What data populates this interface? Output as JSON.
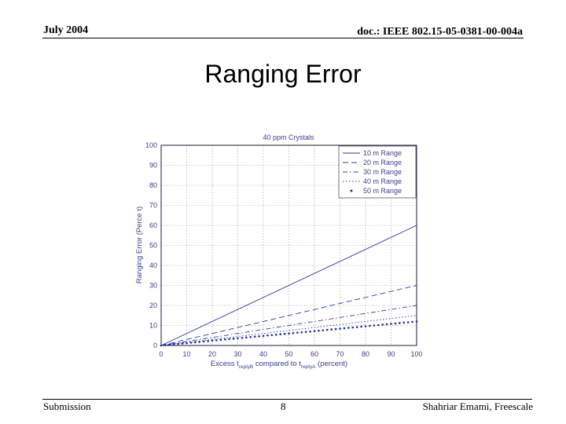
{
  "header": {
    "date": "July 2004",
    "doc_id": "doc.: IEEE 802.15-05-0381-00-004a"
  },
  "slide": {
    "title": "Ranging Error"
  },
  "footer": {
    "left": "Submission",
    "page": "8",
    "right": "Shahriar Emami, Freescale"
  },
  "chart_data": {
    "type": "line",
    "title": "40 ppm Crystals",
    "ylabel": "Ranging Error (Perce t)",
    "xlabel_main": "Excess t",
    "xlabel_sub1": "replyB",
    "xlabel_mid": " compared to t",
    "xlabel_sub2": "replyA",
    "xlabel_end": " (percent)",
    "xlim": [
      0,
      100
    ],
    "ylim": [
      0,
      100
    ],
    "x_ticks": [
      0,
      10,
      20,
      30,
      40,
      50,
      60,
      70,
      80,
      90,
      100
    ],
    "y_ticks": [
      0,
      10,
      20,
      30,
      40,
      50,
      60,
      70,
      80,
      90,
      100
    ],
    "grid": true,
    "legend_position": "top-right",
    "x": [
      0,
      100
    ],
    "series": [
      {
        "name": "10 m Range",
        "values": [
          0,
          60
        ],
        "color": "#2b3a9c",
        "style": "solid"
      },
      {
        "name": "20 m Range",
        "values": [
          0,
          30
        ],
        "color": "#2b3a9c",
        "style": "dashed"
      },
      {
        "name": "30 m Range",
        "values": [
          0,
          20
        ],
        "color": "#2b3a9c",
        "style": "dashdot"
      },
      {
        "name": "40 m Range",
        "values": [
          0,
          15
        ],
        "color": "#2b3a9c",
        "style": "dotted"
      },
      {
        "name": "50 m Range",
        "values": [
          0,
          12
        ],
        "color": "#1f2f9a",
        "style": "markers"
      }
    ]
  }
}
